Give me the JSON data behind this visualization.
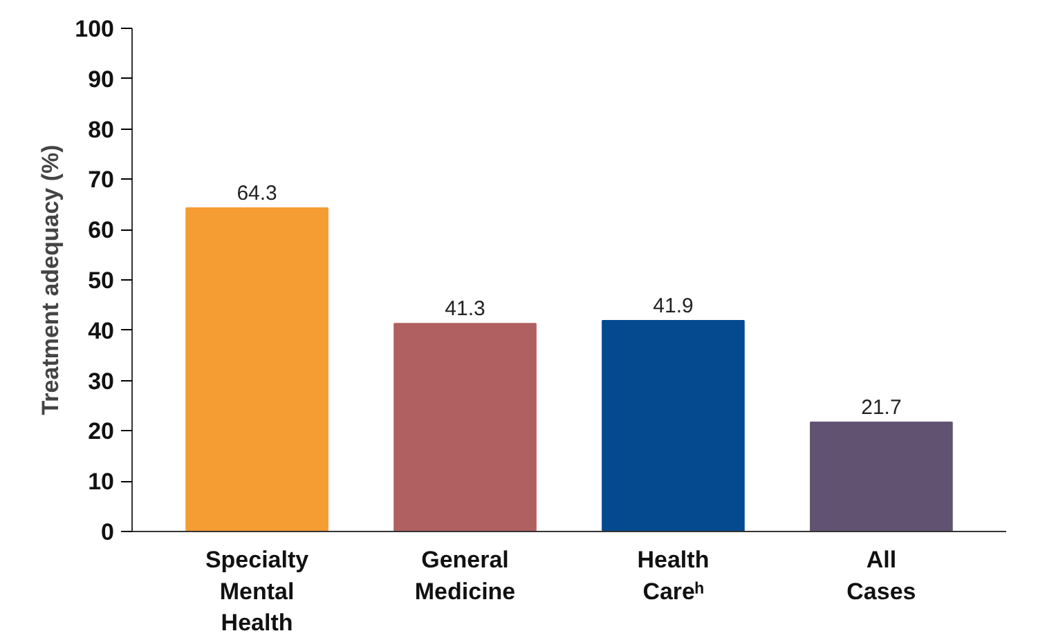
{
  "chart_data": {
    "type": "bar",
    "ylabel": "Treatment adequacy (%)",
    "categories": [
      "Specialty Mental Health",
      "General Medicine",
      "Health Careʰ",
      "All Cases"
    ],
    "values": [
      64.3,
      41.3,
      41.9,
      21.7
    ],
    "colors": [
      "#f59c32",
      "#b06060",
      "#054a8f",
      "#625271"
    ],
    "ylim": [
      0,
      100
    ],
    "yticks": [
      0,
      10,
      20,
      30,
      40,
      50,
      60,
      70,
      80,
      90,
      100
    ],
    "data_labels": true,
    "grid": false
  }
}
